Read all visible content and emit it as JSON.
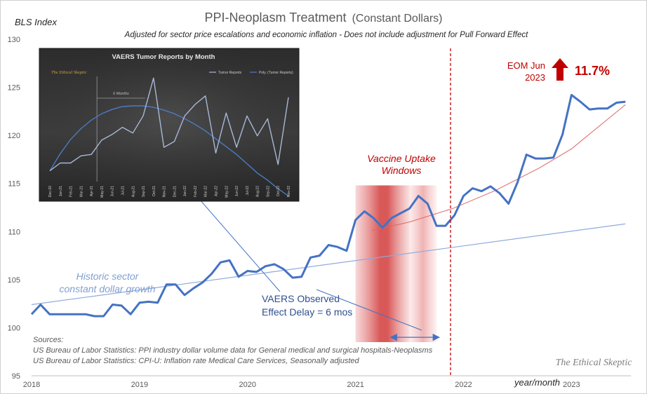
{
  "chart_data": {
    "type": "line",
    "title": "PPI-Neoplasm Treatment",
    "title_suffix": "(Constant Dollars)",
    "subtitle": "Adjusted for sector price escalations and economic inflation - Does not include adjustment for Pull Forward Effect",
    "ylabel": "BLS Index",
    "xlabel": "year/month",
    "ylim": [
      95,
      130
    ],
    "y_ticks": [
      95,
      100,
      105,
      110,
      115,
      120,
      125,
      130
    ],
    "xlim": [
      2018,
      2023.55
    ],
    "x_ticks": [
      {
        "label": "2018",
        "value": 2018
      },
      {
        "label": "2019",
        "value": 2019
      },
      {
        "label": "2020",
        "value": 2020
      },
      {
        "label": "2021",
        "value": 2021
      },
      {
        "label": "2022",
        "value": 2022
      },
      {
        "label": "2023",
        "value": 2023
      }
    ],
    "colors": {
      "series": "#4472c4",
      "trend": "#8fa9dc",
      "exp_trend": "#e06666",
      "accent": "#c00000",
      "annotation": "#7f9fd0"
    },
    "series": [
      {
        "name": "PPI-Neoplasm Treatment (Constant Dollars)",
        "x": [
          2018.0,
          2018.083,
          2018.167,
          2018.25,
          2018.333,
          2018.417,
          2018.5,
          2018.583,
          2018.667,
          2018.75,
          2018.833,
          2018.917,
          2019.0,
          2019.083,
          2019.167,
          2019.25,
          2019.333,
          2019.417,
          2019.5,
          2019.583,
          2019.667,
          2019.75,
          2019.833,
          2019.917,
          2020.0,
          2020.083,
          2020.167,
          2020.25,
          2020.333,
          2020.417,
          2020.5,
          2020.583,
          2020.667,
          2020.75,
          2020.833,
          2020.917,
          2021.0,
          2021.083,
          2021.167,
          2021.25,
          2021.333,
          2021.417,
          2021.5,
          2021.583,
          2021.667,
          2021.75,
          2021.833,
          2021.917,
          2022.0,
          2022.083,
          2022.167,
          2022.25,
          2022.333,
          2022.417,
          2022.5,
          2022.583,
          2022.667,
          2022.75,
          2022.833,
          2022.917,
          2023.0,
          2023.083,
          2023.167,
          2023.25,
          2023.333,
          2023.417,
          2023.5
        ],
        "values": [
          101.4,
          102.4,
          101.4,
          101.4,
          101.4,
          101.4,
          101.4,
          101.2,
          101.2,
          102.4,
          102.3,
          101.4,
          102.6,
          102.7,
          102.6,
          104.5,
          104.5,
          103.4,
          104.1,
          104.7,
          105.6,
          106.8,
          107.0,
          105.3,
          105.9,
          105.8,
          106.4,
          106.6,
          106.1,
          105.2,
          105.3,
          107.3,
          107.5,
          108.6,
          108.4,
          108.0,
          111.2,
          112.1,
          111.4,
          110.4,
          111.4,
          111.9,
          112.4,
          113.7,
          112.9,
          110.6,
          110.6,
          111.7,
          113.7,
          114.5,
          114.2,
          114.7,
          114.0,
          112.9,
          115.1,
          118.0,
          117.6,
          117.6,
          117.7,
          120.1,
          124.2,
          123.5,
          122.7,
          122.8,
          122.8,
          123.4,
          123.5
        ]
      },
      {
        "name": "Historic sector constant dollar growth",
        "x": [
          2018.0,
          2023.5
        ],
        "values": [
          102.4,
          110.8
        ]
      },
      {
        "name": "Exponential trend",
        "x": [
          2021.15,
          2021.5,
          2021.9,
          2022.3,
          2022.7,
          2023.0,
          2023.5
        ],
        "values": [
          110.1,
          111.0,
          112.4,
          114.3,
          116.6,
          118.6,
          123.2
        ]
      }
    ],
    "vaccine_uptake_windows": [
      [
        2021.0,
        2021.5
      ],
      [
        2021.5,
        2021.75
      ]
    ],
    "vertical_marker": {
      "x": 2021.88
    },
    "effect_delay_arrow": {
      "x_from": 2021.3,
      "x_to": 2021.8,
      "y": 99.0
    },
    "annotations": {
      "historic_growth": [
        "Historic sector",
        "constant dollar growth"
      ],
      "vaccine_windows": [
        "Vaccine Uptake",
        "Windows"
      ],
      "effect_delay": [
        "VAERS Observed",
        "Effect Delay = 6 mos"
      ],
      "eom": [
        "EOM Jun",
        "2023"
      ],
      "eom_value": "11.7%"
    },
    "sources": [
      "Sources:",
      "US Bureau of Labor Statistics: PPI industry dollar volume data for General medical and surgical hospitals-Neoplasms",
      "US Bureau of Labor Statistics: CPI-U: Inflation rate Medical Care Services, Seasonally adjusted"
    ],
    "watermark": "The Ethical Skeptic",
    "inset": {
      "title": "VAERS Tumor Reports by Month",
      "watermark": "The Ethical Skeptic",
      "legend": [
        "Tumor Reports",
        "Poly. (Tumor Reports)"
      ],
      "months": [
        "Dec-20",
        "Jan-21",
        "Feb-21",
        "Mar-21",
        "Apr-21",
        "May-21",
        "Jun-21",
        "Jul-21",
        "Aug-21",
        "Sep-21",
        "Oct-21",
        "Nov-21",
        "Dec-21",
        "Jan-22",
        "Feb-22",
        "Mar-22",
        "Apr-22",
        "May-22",
        "Jun-22",
        "Jul-22",
        "Aug-22",
        "Sep-22",
        "Oct-22",
        "Nov-22"
      ],
      "tick_labels": [
        "Dec-20",
        "Jan-21",
        "Feb-21",
        "Mar-21",
        "Apr-21",
        "May-21",
        "Jun-21",
        "Jul-21",
        "Aug-21",
        "Sep-21",
        "Oct-21",
        "Nov-21",
        "Dec-21",
        "Jan-22",
        "Feb-22",
        "Mar-22",
        "Apr-22",
        "May-22",
        "Jun-22",
        "Jul-22",
        "Aug-22",
        "Sep-22",
        "Oct-22",
        "Nov-22"
      ],
      "values": [
        15,
        26,
        26,
        36,
        38,
        58,
        66,
        76,
        68,
        92,
        145,
        48,
        56,
        92,
        108,
        120,
        40,
        96,
        48,
        92,
        64,
        88,
        24,
        118
      ],
      "trend": [
        15,
        39,
        59,
        74,
        86,
        95,
        101,
        105,
        106,
        106,
        104,
        100,
        95,
        88,
        80,
        71,
        60,
        49,
        38,
        25,
        12,
        2,
        -10,
        -20
      ],
      "ylim": [
        0,
        160
      ],
      "six_months_label": "6 Months",
      "six_months_from": 4,
      "six_months_to": 10
    }
  }
}
